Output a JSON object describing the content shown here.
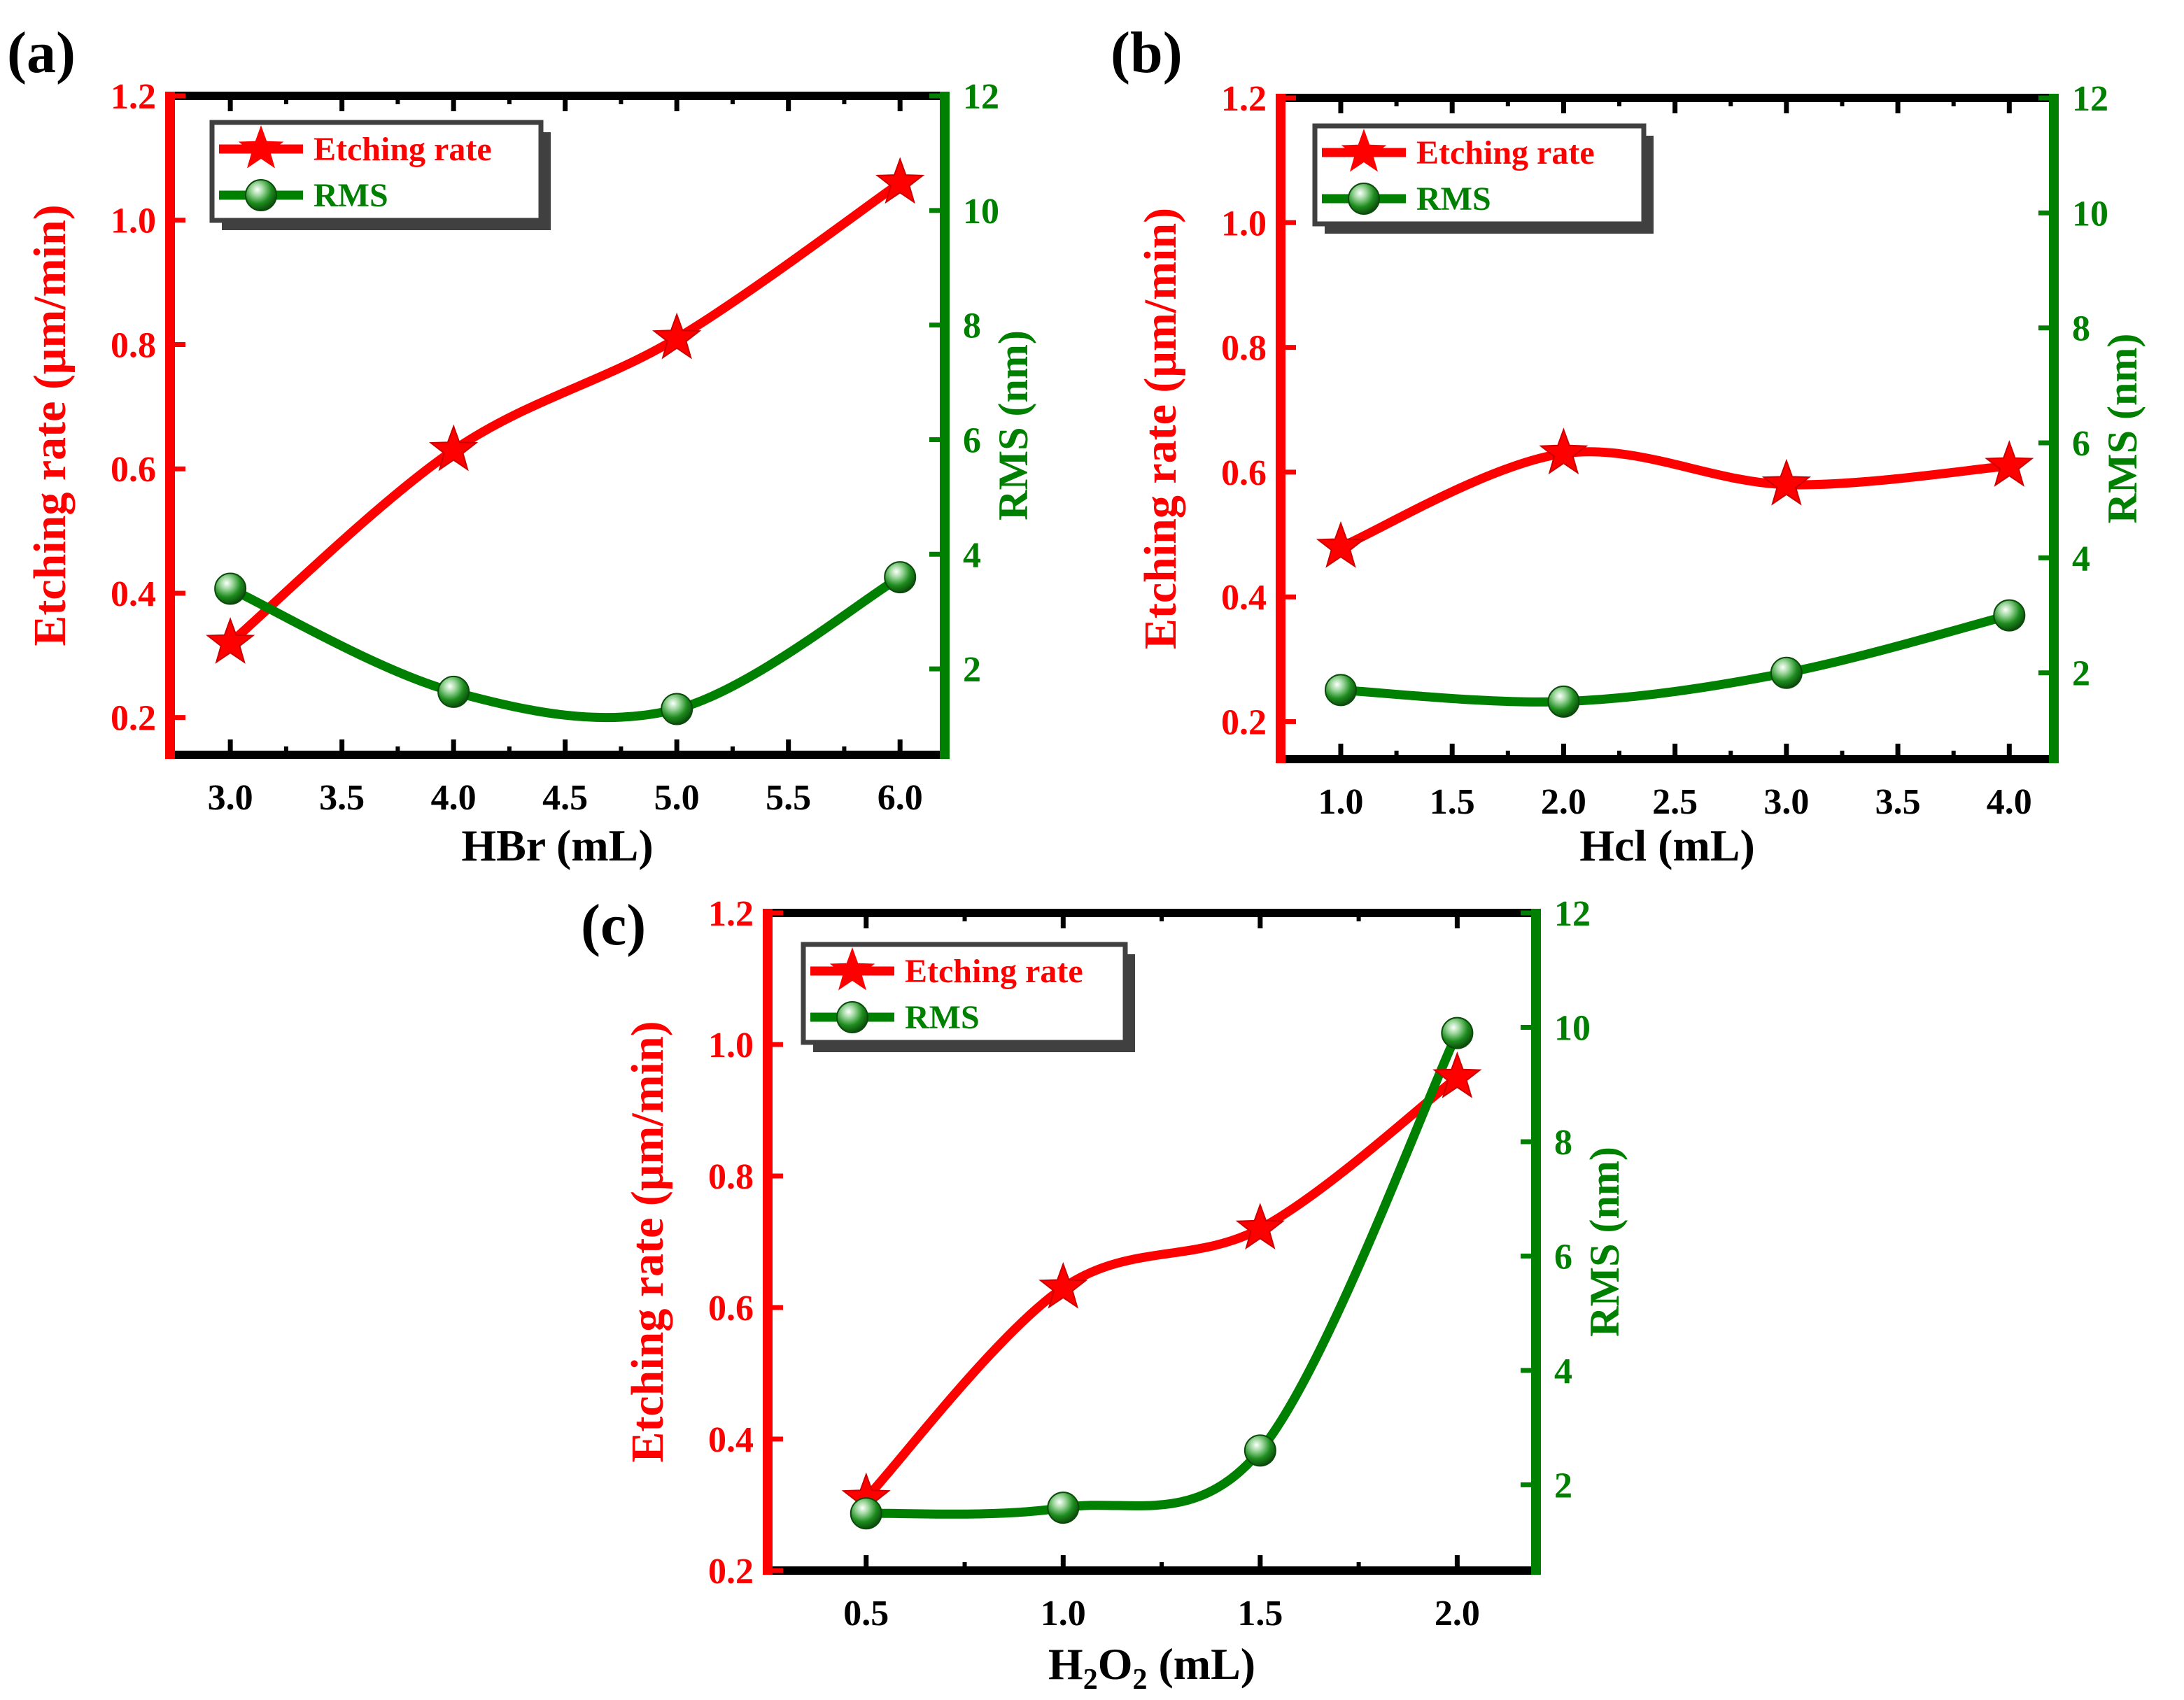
{
  "colors": {
    "etching": "#ff0000",
    "rms": "#008000",
    "frame": "#000000",
    "legend_shadow": "#404040"
  },
  "legend": {
    "etching_label": "Etching rate",
    "rms_label": "RMS"
  },
  "chart_data": [
    {
      "type": "line",
      "panel_label": "(a)",
      "xlabel": "HBr (mL)",
      "x_ticks": [
        "3.0",
        "3.5",
        "4.0",
        "4.5",
        "5.0",
        "5.5",
        "6.0"
      ],
      "xlim": [
        2.73,
        6.2
      ],
      "ylabel_left": "Etching rate (μm/min)",
      "ylim_left": [
        0.14,
        1.2
      ],
      "yticks_left": [
        "0.2",
        "0.4",
        "0.6",
        "0.8",
        "1.0",
        "1.2"
      ],
      "ylabel_right": "RMS (nm)",
      "ylim_right": [
        0.5,
        12
      ],
      "yticks_right": [
        "2",
        "4",
        "6",
        "8",
        "10",
        "12"
      ],
      "series": [
        {
          "name": "Etching rate",
          "axis": "left",
          "marker": "star",
          "x": [
            3.0,
            4.0,
            5.0,
            6.0
          ],
          "values": [
            0.32,
            0.63,
            0.81,
            1.06
          ]
        },
        {
          "name": "RMS",
          "axis": "right",
          "marker": "sphere",
          "x": [
            3.0,
            4.0,
            5.0,
            6.0
          ],
          "values": [
            3.4,
            1.6,
            1.3,
            3.6
          ]
        }
      ]
    },
    {
      "type": "line",
      "panel_label": "(b)",
      "xlabel": "Hcl (mL)",
      "x_ticks": [
        "1.0",
        "1.5",
        "2.0",
        "2.5",
        "3.0",
        "3.5",
        "4.0"
      ],
      "xlim": [
        0.73,
        4.2
      ],
      "ylabel_left": "Etching rate (μm/min)",
      "ylim_left": [
        0.14,
        1.2
      ],
      "yticks_left": [
        "0.2",
        "0.4",
        "0.6",
        "0.8",
        "1.0",
        "1.2"
      ],
      "ylabel_right": "RMS (nm)",
      "ylim_right": [
        0.5,
        12
      ],
      "yticks_right": [
        "2",
        "4",
        "6",
        "8",
        "10",
        "12"
      ],
      "series": [
        {
          "name": "Etching rate",
          "axis": "left",
          "marker": "star",
          "x": [
            1.0,
            2.0,
            3.0,
            4.0
          ],
          "values": [
            0.48,
            0.63,
            0.58,
            0.61
          ]
        },
        {
          "name": "RMS",
          "axis": "right",
          "marker": "sphere",
          "x": [
            1.0,
            2.0,
            3.0,
            4.0
          ],
          "values": [
            1.7,
            1.5,
            2.0,
            3.0
          ]
        }
      ]
    },
    {
      "type": "line",
      "panel_label": "(c)",
      "xlabel": "H2O2 (mL)",
      "x_ticks": [
        "0.5",
        "1.0",
        "1.5",
        "2.0"
      ],
      "xlim": [
        0.25,
        2.2
      ],
      "ylabel_left": "Etching rate (μm/min)",
      "ylim_left": [
        0.2,
        1.2
      ],
      "yticks_left": [
        "0.2",
        "0.4",
        "0.6",
        "0.8",
        "1.0",
        "1.2"
      ],
      "ylabel_right": "RMS (nm)",
      "ylim_right": [
        0.5,
        12
      ],
      "yticks_right": [
        "2",
        "4",
        "6",
        "8",
        "10",
        "12"
      ],
      "series": [
        {
          "name": "Etching rate",
          "axis": "left",
          "marker": "star",
          "x": [
            0.5,
            1.0,
            1.5,
            2.0
          ],
          "values": [
            0.31,
            0.63,
            0.72,
            0.95
          ]
        },
        {
          "name": "RMS",
          "axis": "right",
          "marker": "sphere",
          "x": [
            0.5,
            1.0,
            1.5,
            2.0
          ],
          "values": [
            1.5,
            1.6,
            2.6,
            9.9
          ]
        }
      ]
    }
  ]
}
